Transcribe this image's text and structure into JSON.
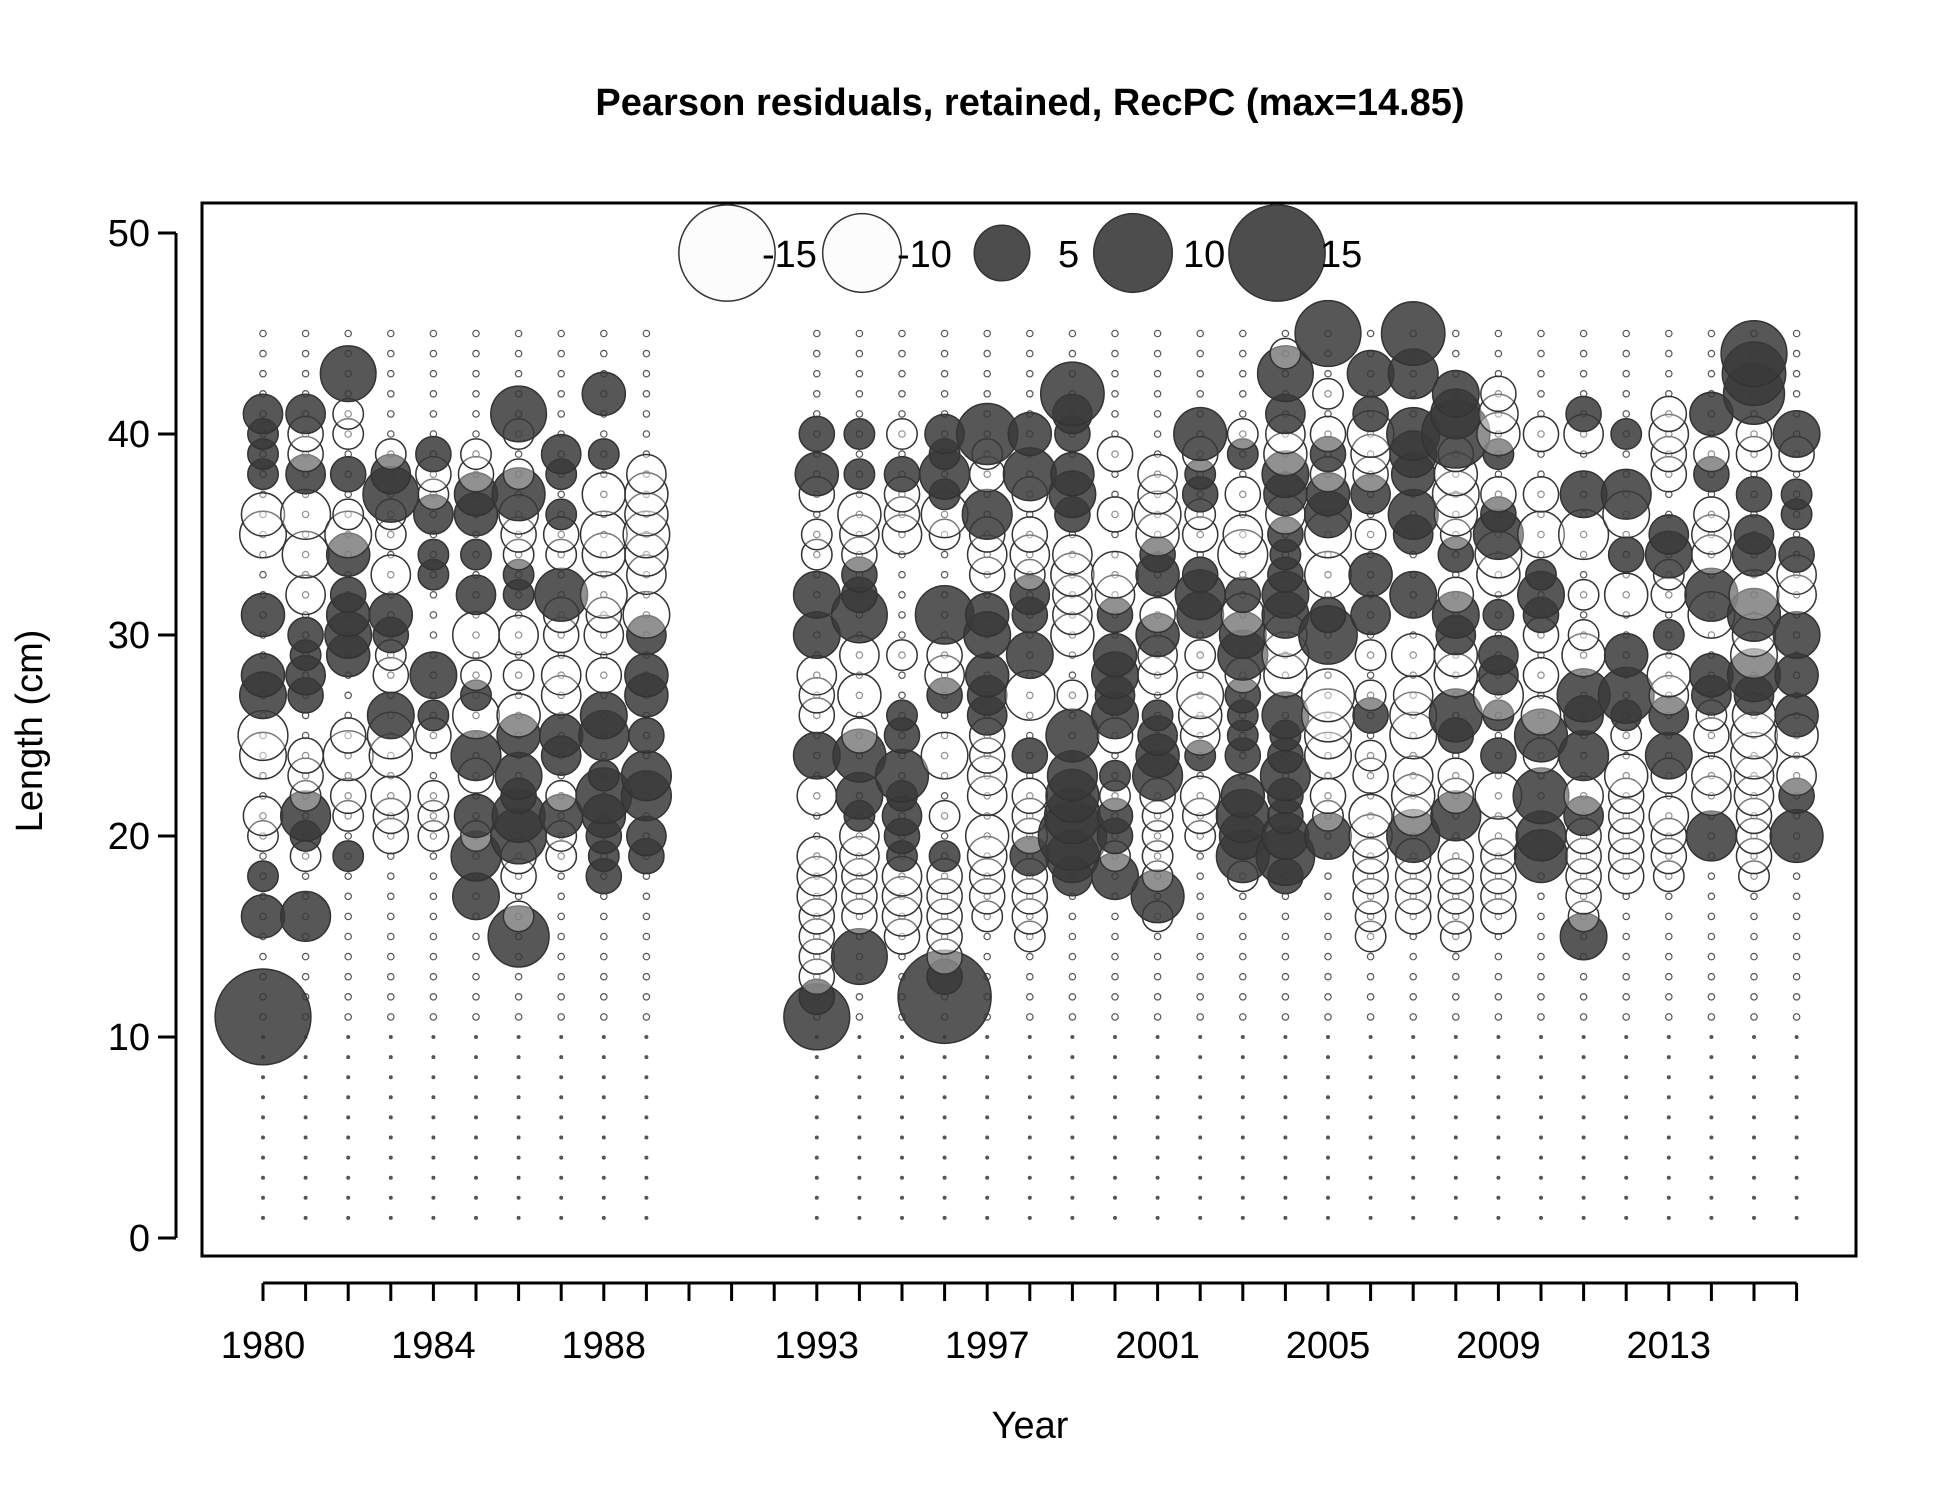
{
  "chart_data": {
    "type": "scatter",
    "title": "Pearson residuals, retained, RecPC (max=14.85)",
    "xlabel": "Year",
    "ylabel": "Length (cm)",
    "xlim": [
      1979.5,
      2016.5
    ],
    "ylim": [
      0,
      50
    ],
    "x_tick_labels": [
      "1980",
      "1984",
      "1988",
      "1993",
      "1997",
      "2001",
      "2005",
      "2009",
      "2013"
    ],
    "y_tick_labels": [
      "0",
      "10",
      "20",
      "30",
      "40",
      "50"
    ],
    "years": [
      1980,
      1981,
      1982,
      1983,
      1984,
      1985,
      1986,
      1987,
      1988,
      1989,
      1993,
      1994,
      1995,
      1996,
      1997,
      1998,
      1999,
      2000,
      2001,
      2002,
      2003,
      2004,
      2005,
      2006,
      2007,
      2008,
      2009,
      2010,
      2011,
      2012,
      2013,
      2014,
      2015,
      2016
    ],
    "legend": {
      "placement": "top",
      "entries": [
        {
          "label": "-15",
          "value": -15
        },
        {
          "label": "-10",
          "value": -10
        },
        {
          "label": "5",
          "value": 5
        },
        {
          "label": "10",
          "value": 10
        },
        {
          "label": "15",
          "value": 15
        }
      ]
    },
    "colors": {
      "positive_fill": "#3a3a3a",
      "negative_fill": "#ffffff",
      "stroke": "#333333"
    },
    "residuals": {
      "1980": {
        "11": 14.85,
        "16": 3.0,
        "18": 1.5,
        "20": -1.5,
        "21": -2.5,
        "24": -3.5,
        "25": -4.0,
        "27": 3.5,
        "28": 3.0,
        "31": 3.0,
        "35": -3.5,
        "36": -3.0,
        "38": 1.5,
        "39": 1.5,
        "40": 1.5,
        "41": 2.5
      },
      "1981": {
        "16": 4.0,
        "19": -1.5,
        "20": 1.5,
        "21": 4.0,
        "22": -1.5,
        "23": -2.0,
        "24": -2.0,
        "27": 2.0,
        "28": 2.5,
        "29": 1.5,
        "30": 2.0,
        "32": -2.5,
        "34": -3.5,
        "36": -4.0,
        "38": 2.5,
        "39": -2.0,
        "40": -2.0,
        "41": 2.5
      },
      "1982": {
        "19": 1.5,
        "21": -1.5,
        "22": -2.0,
        "24": -4.0,
        "25": -2.0,
        "29": 3.0,
        "30": 3.5,
        "31": 3.0,
        "32": 2.0,
        "34": 3.0,
        "35": -3.5,
        "36": -1.5,
        "38": 2.0,
        "40": -1.5,
        "41": -1.5,
        "43": 5.0
      },
      "1983": {
        "20": -2.0,
        "21": -2.0,
        "22": -2.5,
        "24": -3.0,
        "25": -3.5,
        "26": 3.5,
        "28": -2.0,
        "29": -1.5,
        "30": 2.0,
        "31": 3.0,
        "33": -2.5,
        "35": -1.5,
        "36": -1.5,
        "37": 5.0,
        "38": 2.5,
        "39": -1.5
      },
      "1984": {
        "20": -1.5,
        "21": -1.5,
        "22": -1.5,
        "25": -2.0,
        "26": 1.5,
        "28": 3.5,
        "33": 1.5,
        "34": 1.5,
        "36": 2.5,
        "37": -1.5,
        "38": -2.0,
        "39": 2.0
      },
      "1985": {
        "17": 3.5,
        "19": 4.0,
        "20": -1.5,
        "21": 3.0,
        "23": -2.0,
        "24": 4.0,
        "26": -3.5,
        "27": 1.5,
        "28": -1.5,
        "30": -3.5,
        "32": 2.5,
        "34": 1.5,
        "36": 3.0,
        "37": 3.0,
        "38": -2.0,
        "39": -1.5
      },
      "1986": {
        "15": 6.0,
        "16": -1.5,
        "18": -2.0,
        "19": -2.0,
        "20": 5.0,
        "21": 4.5,
        "22": 2.0,
        "23": 3.5,
        "25": 3.0,
        "26": -3.0,
        "28": -1.5,
        "30": -2.5,
        "32": 1.5,
        "33": 1.5,
        "34": -1.5,
        "35": -2.0,
        "36": -2.5,
        "37": 4.5,
        "38": -1.5,
        "40": -1.5,
        "41": 5.0
      },
      "1987": {
        "19": -1.5,
        "20": -1.5,
        "21": 3.0,
        "22": -1.5,
        "24": 2.5,
        "25": 3.0,
        "27": -2.5,
        "28": -2.5,
        "30": -2.0,
        "31": -2.0,
        "32": 4.5,
        "34": -1.5,
        "35": -2.0,
        "36": 1.5,
        "38": 1.5,
        "39": 2.5
      },
      "1988": {
        "18": 2.0,
        "19": 1.5,
        "20": 2.0,
        "21": 3.0,
        "22": 5.0,
        "23": 1.5,
        "25": 4.0,
        "26": 3.5,
        "28": -2.0,
        "30": -2.5,
        "31": -2.0,
        "32": -3.5,
        "34": -3.0,
        "35": -3.5,
        "37": -3.0,
        "39": 1.5,
        "42": 3.0
      },
      "1989": {
        "19": 2.0,
        "20": 2.5,
        "22": 4.0,
        "23": 4.0,
        "25": 2.0,
        "27": 3.0,
        "28": 3.0,
        "30": 2.5,
        "31": -3.5,
        "33": -2.5,
        "34": -3.0,
        "35": -3.5,
        "36": -3.0,
        "37": -3.0,
        "38": -2.5
      },
      "1993": {
        "11": 7.0,
        "12": 2.0,
        "13": -2.0,
        "14": -2.0,
        "15": -2.0,
        "16": -2.0,
        "17": -2.5,
        "18": -2.5,
        "19": -2.5,
        "22": -2.5,
        "24": 3.5,
        "26": -2.0,
        "27": -2.0,
        "28": -2.5,
        "30": 3.5,
        "32": 3.5,
        "34": -1.5,
        "35": -1.5,
        "37": -2.0,
        "38": 3.0,
        "40": 2.0
      },
      "1994": {
        "14": 5.0,
        "16": -2.0,
        "17": -2.0,
        "18": -2.0,
        "19": -2.5,
        "20": -2.5,
        "21": 1.5,
        "22": 3.5,
        "24": 4.5,
        "25": -2.0,
        "27": -3.0,
        "29": -2.5,
        "31": 5.0,
        "32": 2.0,
        "33": 2.0,
        "34": -2.0,
        "35": -2.5,
        "36": -3.0,
        "38": 1.5,
        "40": 1.5
      },
      "1995": {
        "15": -2.0,
        "16": -2.5,
        "17": -2.5,
        "18": -2.5,
        "19": 1.5,
        "20": 2.0,
        "21": 2.5,
        "22": 1.5,
        "23": 4.5,
        "25": 2.0,
        "26": 1.5,
        "29": -1.5,
        "35": -2.5,
        "36": -2.0,
        "37": -2.0,
        "38": 2.0,
        "40": -1.5
      },
      "1996": {
        "12": 14.0,
        "13": 2.0,
        "14": -2.0,
        "15": -2.0,
        "16": -2.0,
        "17": -2.0,
        "18": -2.0,
        "19": 1.5,
        "21": -1.5,
        "24": -3.5,
        "27": 2.0,
        "28": -2.5,
        "29": -2.0,
        "31": 5.5,
        "35": -1.5,
        "36": -3.5,
        "37": 1.5,
        "38": 4.0,
        "39": 1.5,
        "40": 2.5
      },
      "1997": {
        "16": -1.5,
        "17": -2.0,
        "18": -2.0,
        "19": -2.5,
        "20": -3.0,
        "22": -2.5,
        "23": -2.5,
        "24": -2.0,
        "25": -2.0,
        "26": 2.5,
        "27": 2.5,
        "28": 3.0,
        "30": 3.5,
        "31": 3.0,
        "33": -2.0,
        "34": -2.5,
        "35": -2.0,
        "36": 4.0,
        "38": -2.0,
        "39": -1.5,
        "40": 6.0
      },
      "1998": {
        "15": -1.5,
        "16": -2.0,
        "17": -2.0,
        "18": -2.0,
        "19": 2.5,
        "20": -2.0,
        "21": -2.0,
        "22": -2.0,
        "24": 2.0,
        "27": -4.0,
        "29": 3.5,
        "31": 2.0,
        "32": 2.5,
        "33": -1.5,
        "34": -2.5,
        "35": -2.0,
        "37": -2.0,
        "38": 4.5,
        "40": 3.0
      },
      "1999": {
        "18": 2.5,
        "19": 4.5,
        "20": 7.5,
        "21": 5.0,
        "22": 4.5,
        "23": 4.0,
        "25": 4.5,
        "27": -1.5,
        "30": -3.0,
        "31": -2.5,
        "32": -2.5,
        "33": -3.0,
        "34": -2.5,
        "36": 2.0,
        "37": 3.5,
        "38": 3.0,
        "40": 2.0,
        "41": 2.5,
        "42": 6.5
      },
      "2000": {
        "18": 3.5,
        "19": -1.5,
        "20": 2.0,
        "21": 2.0,
        "22": -1.5,
        "23": 1.5,
        "25": -2.0,
        "26": 3.5,
        "27": 2.5,
        "28": 3.5,
        "29": 3.0,
        "31": 2.0,
        "32": -2.5,
        "33": -3.5,
        "36": -2.0,
        "39": -2.0
      },
      "2001": {
        "16": -1.5,
        "17": 4.5,
        "18": -1.5,
        "19": -1.5,
        "20": -1.5,
        "21": -1.5,
        "22": -2.0,
        "23": 4.0,
        "24": 3.0,
        "25": 2.5,
        "26": 1.5,
        "28": -2.5,
        "29": -2.5,
        "30": 3.0,
        "31": -2.0,
        "33": 3.0,
        "34": 2.0,
        "35": -3.0,
        "36": -3.5,
        "37": -2.5,
        "38": -2.5
      },
      "2002": {
        "20": -1.5,
        "21": -2.0,
        "22": -2.5,
        "24": 1.5,
        "25": -2.5,
        "26": -3.0,
        "27": -3.5,
        "29": -1.5,
        "31": 3.5,
        "32": 4.0,
        "33": 2.0,
        "35": -2.0,
        "36": -1.5,
        "37": 2.0,
        "38": 1.5,
        "39": -2.0,
        "40": 4.5
      },
      "2003": {
        "18": -1.5,
        "19": 4.5,
        "20": 3.5,
        "21": 4.5,
        "22": 3.0,
        "24": 2.0,
        "25": 1.5,
        "26": 1.5,
        "27": 2.0,
        "28": -2.0,
        "29": 4.0,
        "30": 3.5,
        "31": -3.0,
        "32": 2.0,
        "34": -4.0,
        "35": -2.5,
        "37": -2.0,
        "39": 1.5,
        "40": -1.5
      },
      "2004": {
        "18": 2.0,
        "19": 5.5,
        "20": 3.5,
        "21": 2.0,
        "22": 2.0,
        "23": 4.0,
        "24": 2.0,
        "25": 1.5,
        "26": 3.5,
        "28": -3.0,
        "29": -3.5,
        "30": -3.0,
        "31": 3.5,
        "32": 3.5,
        "33": 2.0,
        "34": 1.5,
        "35": 2.0,
        "36": -2.5,
        "37": 3.0,
        "38": 3.5,
        "39": -3.0,
        "40": -2.5,
        "41": 2.5,
        "43": 5.0,
        "44": -1.5
      },
      "2005": {
        "20": 3.5,
        "21": -1.5,
        "22": -2.0,
        "24": -3.5,
        "25": -3.5,
        "26": -4.5,
        "27": -4.5,
        "30": 5.5,
        "31": 2.0,
        "33": -3.5,
        "35": -3.5,
        "36": 3.5,
        "37": 3.0,
        "38": -2.0,
        "39": 2.0,
        "40": -2.0,
        "42": -1.5,
        "45": 7.0
      },
      "2006": {
        "15": -1.5,
        "16": -1.5,
        "17": -2.0,
        "18": -2.0,
        "19": -2.0,
        "20": -3.0,
        "21": -3.0,
        "23": -2.0,
        "24": -1.5,
        "26": 2.0,
        "27": -1.5,
        "29": -1.5,
        "31": 2.5,
        "33": 3.0,
        "35": -1.5,
        "37": 2.5,
        "38": -2.0,
        "39": -2.5,
        "40": -3.5,
        "41": 2.0,
        "43": 3.5
      },
      "2007": {
        "16": -2.0,
        "17": -2.0,
        "18": -2.0,
        "19": -2.0,
        "20": 4.5,
        "21": -2.5,
        "22": -3.0,
        "23": -2.5,
        "25": -3.5,
        "26": -3.5,
        "27": -2.5,
        "29": -3.0,
        "32": 3.5,
        "35": 2.5,
        "36": 4.0,
        "38": 3.0,
        "39": 3.5,
        "40": 4.5,
        "43": 4.0,
        "45": 6.5
      },
      "2008": {
        "15": -1.5,
        "16": -2.0,
        "17": -2.0,
        "18": -2.0,
        "19": -2.0,
        "21": 4.0,
        "22": -2.0,
        "23": -2.0,
        "25": 2.0,
        "26": 4.5,
        "28": -3.0,
        "29": -3.0,
        "30": 2.5,
        "31": 3.5,
        "32": -2.0,
        "34": 2.0,
        "35": -1.5,
        "36": -3.0,
        "37": -3.5,
        "38": -3.0,
        "39": -2.0,
        "40": 7.5,
        "41": 4.0,
        "42": 3.5
      },
      "2009": {
        "16": -2.0,
        "17": -2.0,
        "18": -2.0,
        "19": -2.0,
        "20": -2.5,
        "22": -3.5,
        "24": 2.0,
        "26": 1.5,
        "27": -4.0,
        "28": 2.5,
        "29": 2.5,
        "31": 1.5,
        "33": -3.0,
        "34": -3.5,
        "35": 4.0,
        "36": 2.0,
        "37": -2.0,
        "39": 1.5,
        "40": -3.0,
        "41": -2.5,
        "42": -2.0
      },
      "2010": {
        "19": 4.5,
        "20": 4.0,
        "22": 5.0,
        "24": -2.0,
        "25": 4.5,
        "26": -2.5,
        "28": -2.0,
        "30": -2.0,
        "31": 2.0,
        "32": 3.5,
        "33": 1.5,
        "35": -3.5,
        "37": -2.0,
        "40": -2.0
      },
      "2011": {
        "15": 3.5,
        "16": -1.5,
        "17": -2.0,
        "18": -2.0,
        "19": -2.0,
        "20": -2.0,
        "21": 2.5,
        "22": -2.5,
        "24": 4.0,
        "26": 2.5,
        "27": 4.5,
        "29": -3.0,
        "30": -1.5,
        "32": -1.5,
        "35": -4.0,
        "37": 3.5,
        "40": -2.5,
        "41": 2.0
      },
      "2012": {
        "18": -2.0,
        "19": -2.0,
        "20": -2.0,
        "21": -2.0,
        "22": -2.0,
        "23": -3.0,
        "25": -1.5,
        "26": 1.5,
        "27": 5.0,
        "29": 3.0,
        "32": -3.0,
        "34": 2.0,
        "36": -3.5,
        "37": 4.0,
        "40": 1.5
      },
      "2013": {
        "18": -1.5,
        "19": -2.0,
        "20": -2.0,
        "21": -2.5,
        "23": -2.0,
        "24": 3.5,
        "26": 2.5,
        "27": -2.5,
        "28": -3.0,
        "30": 1.5,
        "32": -2.0,
        "33": -1.5,
        "34": 3.5,
        "35": 2.5,
        "38": -2.0,
        "39": -2.0,
        "40": -2.5,
        "41": -2.0
      },
      "2014": {
        "20": 4.0,
        "22": -2.5,
        "23": -2.5,
        "25": -2.0,
        "26": -1.5,
        "27": 2.5,
        "28": 3.0,
        "31": -3.5,
        "32": 4.5,
        "34": -2.5,
        "35": -2.5,
        "36": -2.0,
        "38": 2.0,
        "39": -2.0,
        "41": 3.0
      },
      "2015": {
        "18": -1.5,
        "19": -2.0,
        "20": -2.0,
        "21": -2.0,
        "22": -2.5,
        "23": -2.5,
        "24": -3.5,
        "25": -3.5,
        "26": -3.0,
        "27": 2.5,
        "28": 4.5,
        "29": -3.5,
        "30": -3.0,
        "31": 4.5,
        "32": -4.0,
        "34": 3.0,
        "35": 2.5,
        "37": 2.0,
        "39": -2.0,
        "40": -2.0,
        "42": 6.0,
        "43": 6.5,
        "44": 7.0
      },
      "2016": {
        "20": 4.5,
        "22": 2.0,
        "23": -2.5,
        "25": -3.0,
        "26": 3.0,
        "28": 3.0,
        "30": 3.5,
        "32": -2.5,
        "33": -2.5,
        "34": 2.0,
        "36": 1.5,
        "37": 1.5,
        "39": -2.0,
        "40": 3.5
      }
    }
  }
}
